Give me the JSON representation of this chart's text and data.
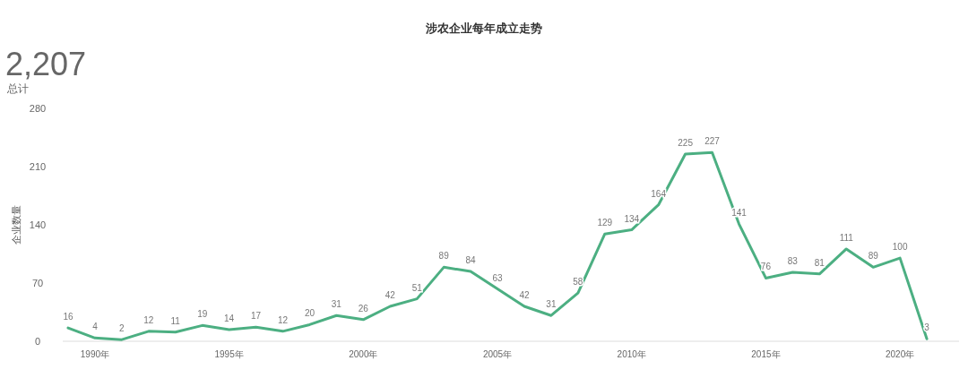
{
  "chart_data": {
    "type": "line",
    "title": "涉农企业每年成立走势",
    "ylabel": "企业数量",
    "annotations": [
      "2,207",
      "总计"
    ],
    "x": [
      1989,
      1990,
      1991,
      1992,
      1993,
      1994,
      1995,
      1996,
      1997,
      1998,
      1999,
      2000,
      2001,
      2002,
      2003,
      2004,
      2005,
      2006,
      2007,
      2008,
      2009,
      2010,
      2011,
      2012,
      2013,
      2014,
      2015,
      2016,
      2017,
      2018,
      2019,
      2020,
      2021
    ],
    "series": [
      {
        "color": "#4caf82",
        "values": [
          16,
          4,
          2,
          12,
          11,
          19,
          14,
          17,
          12,
          20,
          31,
          26,
          42,
          51,
          89,
          84,
          63,
          42,
          31,
          58,
          129,
          134,
          164,
          225,
          227,
          141,
          76,
          83,
          81,
          111,
          89,
          100,
          3
        ]
      }
    ],
    "xlim": [
      1988.8,
      2022.2
    ],
    "xticks": [
      {
        "value": 1990,
        "label": "1990年"
      },
      {
        "value": 1995,
        "label": "1995年"
      },
      {
        "value": 2000,
        "label": "2000年"
      },
      {
        "value": 2005,
        "label": "2005年"
      },
      {
        "value": 2010,
        "label": "2010年"
      },
      {
        "value": 2015,
        "label": "2015年"
      },
      {
        "value": 2020,
        "label": "2020年"
      }
    ],
    "ylim": [
      0,
      280
    ],
    "yticks": [
      0,
      70,
      140,
      210,
      280
    ],
    "data_labels": true,
    "grid": false,
    "marker": "none",
    "line_style": "solid"
  }
}
